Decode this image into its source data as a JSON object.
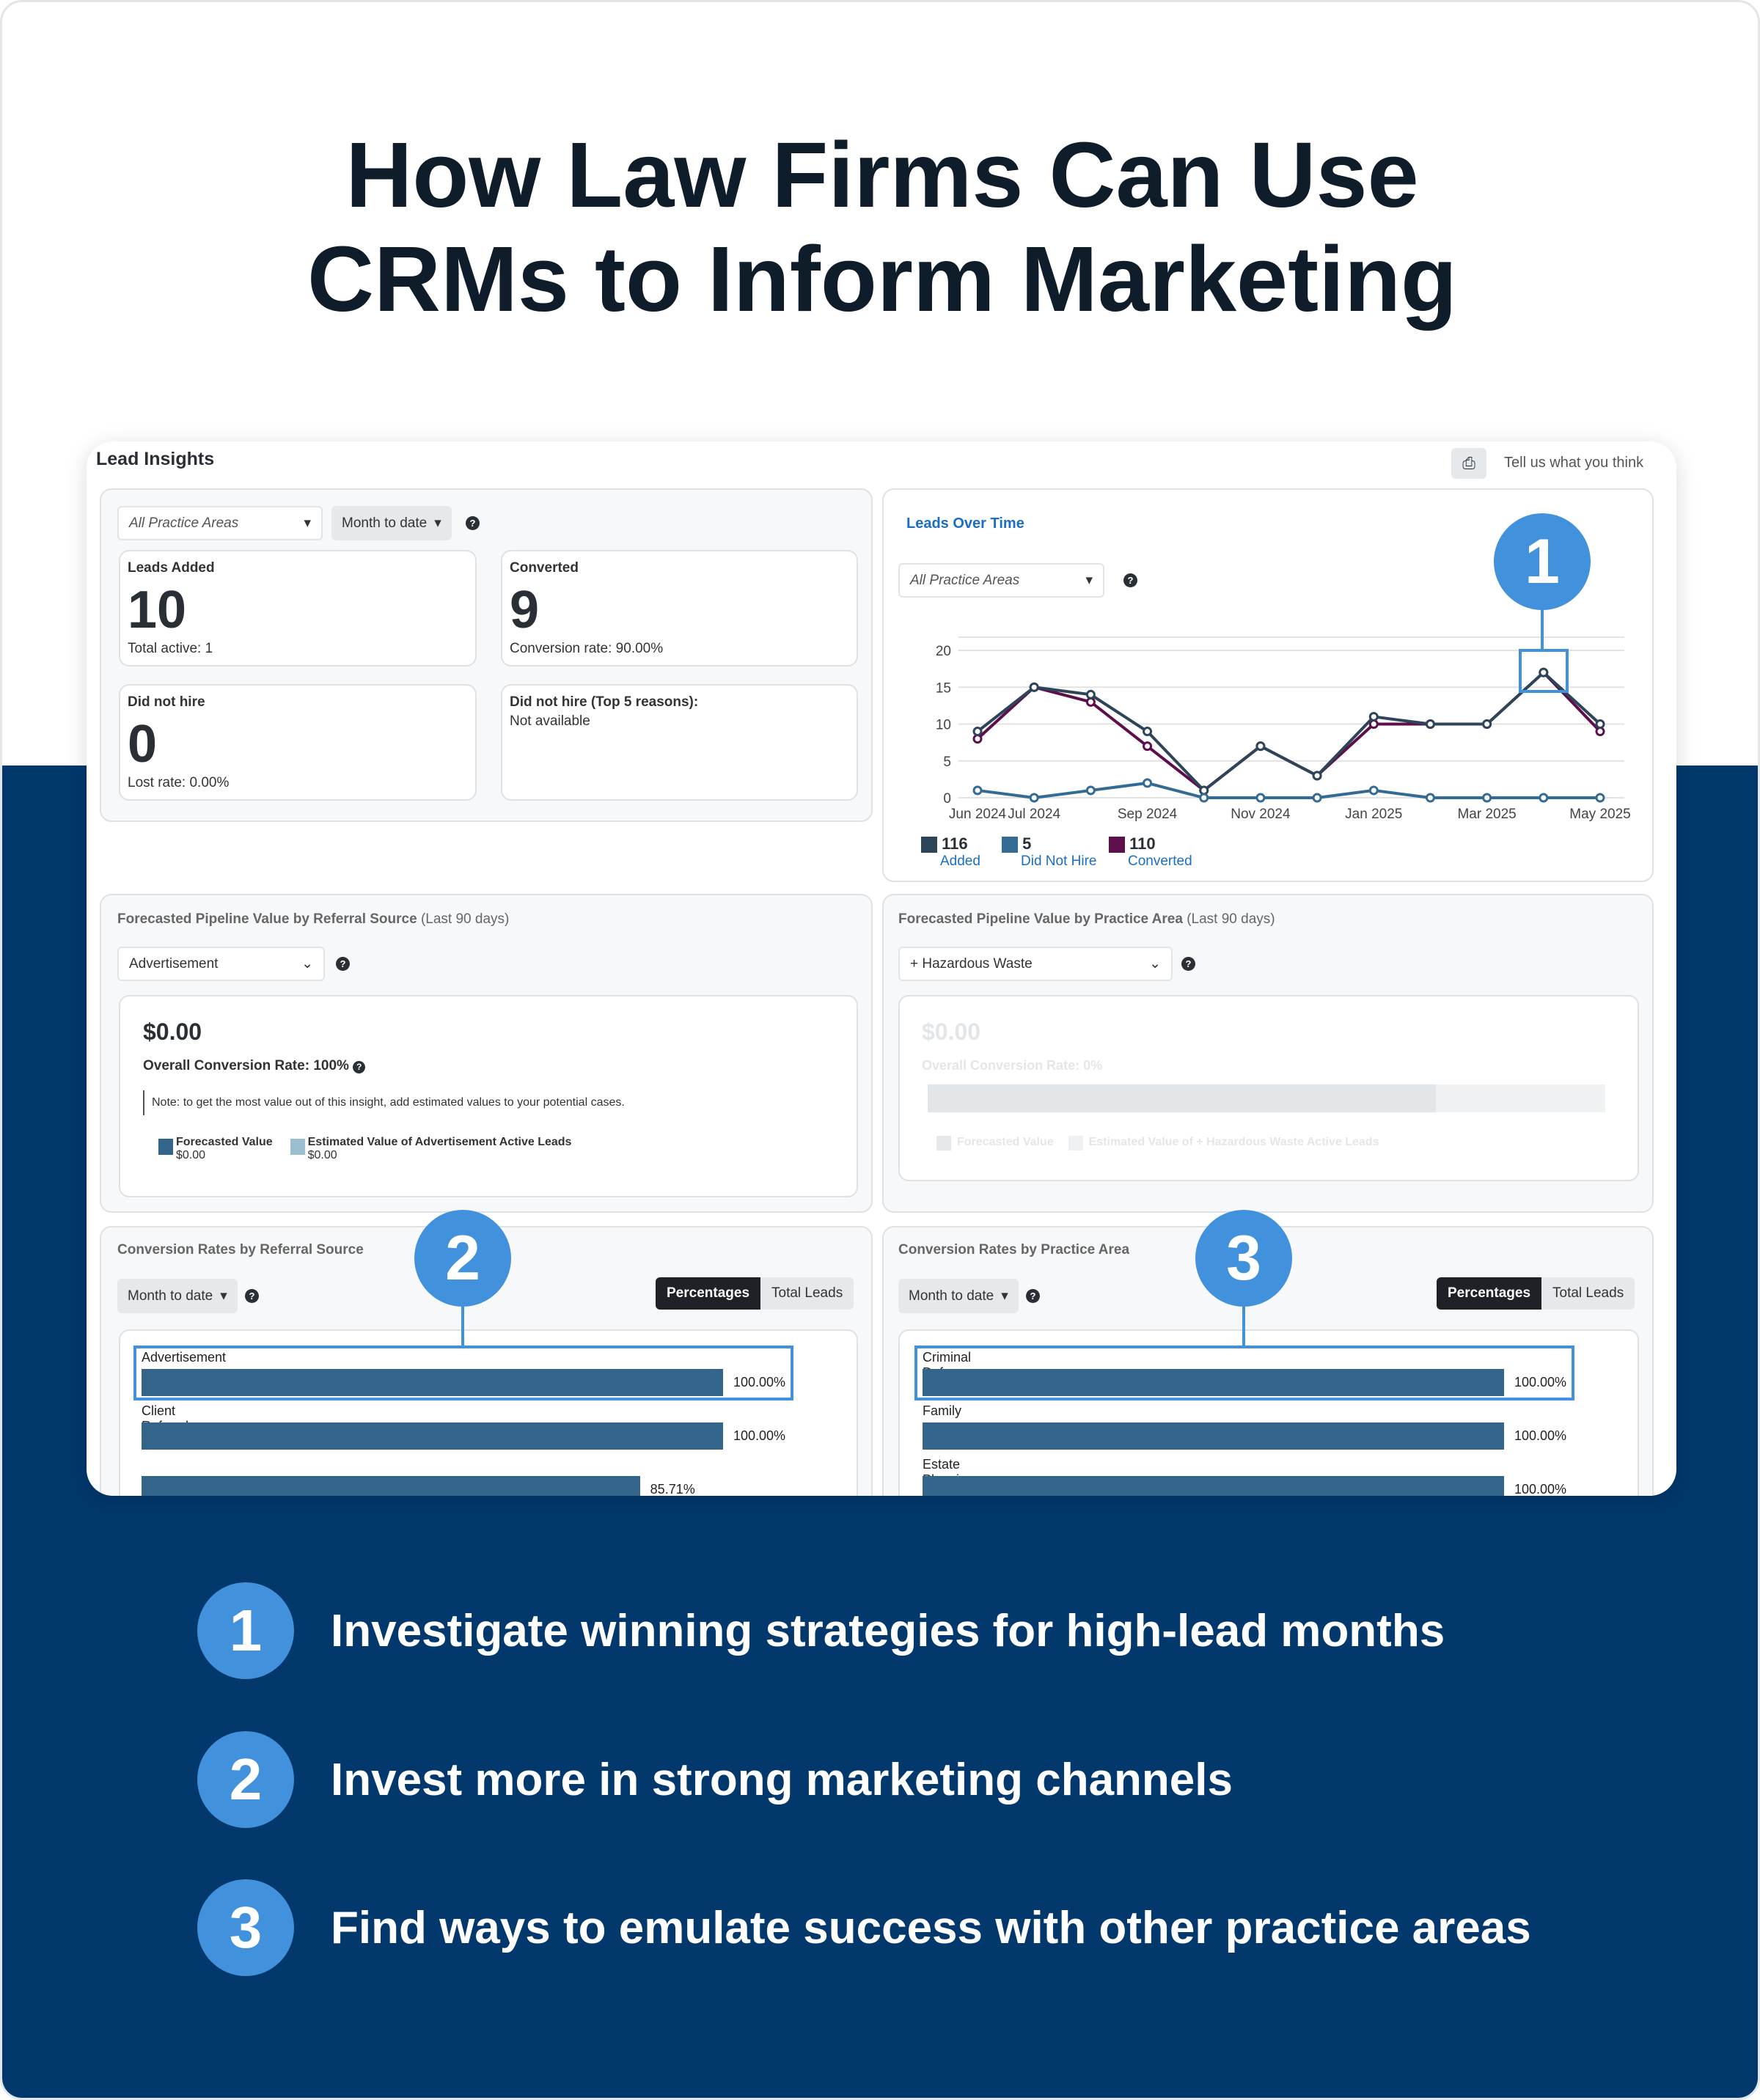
{
  "page": {
    "title_line1": "How Law Firms Can Use",
    "title_line2": "CRMs to Inform Marketing"
  },
  "header": {
    "title": "Lead Insights",
    "print_icon": "printer-icon",
    "feedback": "Tell us what you think"
  },
  "summary": {
    "practice_area_select": "All Practice Areas",
    "period_select": "Month to date",
    "help": "?",
    "leads_added": {
      "title": "Leads Added",
      "value": "10",
      "sub": "Total active: 1"
    },
    "converted": {
      "title": "Converted",
      "value": "9",
      "sub": "Conversion rate: 90.00%"
    },
    "did_not_hire": {
      "title": "Did not hire",
      "value": "0",
      "sub": "Lost rate: 0.00%"
    },
    "reasons": {
      "title": "Did not hire (Top 5 reasons):",
      "value": "Not available"
    }
  },
  "leads_over_time": {
    "title": "Leads Over Time",
    "select": "All Practice Areas"
  },
  "chart_data": {
    "type": "line",
    "title": "Leads Over Time",
    "x": [
      "Jun 2024",
      "Jul 2024",
      "Aug 2024",
      "Sep 2024",
      "Oct 2024",
      "Nov 2024",
      "Dec 2024",
      "Jan 2025",
      "Feb 2025",
      "Mar 2025",
      "Apr 2025",
      "May 2025"
    ],
    "x_tick_labels": [
      "Jun 2024",
      "Jul 2024",
      "Sep 2024",
      "Nov 2024",
      "Jan 2025",
      "Mar 2025",
      "May 2025"
    ],
    "y_ticks": [
      "0",
      "5",
      "10",
      "15",
      "20"
    ],
    "ylim": [
      0,
      22
    ],
    "grid": true,
    "series": [
      {
        "name": "Added",
        "total": "116",
        "color": "#2e4459",
        "values": [
          9,
          15,
          14,
          9,
          1,
          7,
          3,
          11,
          10,
          10,
          17,
          10
        ]
      },
      {
        "name": "Did Not Hire",
        "total": "5",
        "color": "#336b94",
        "values": [
          1,
          0,
          1,
          2,
          0,
          0,
          0,
          1,
          0,
          0,
          0,
          0
        ]
      },
      {
        "name": "Converted",
        "total": "110",
        "color": "#5e0f4b",
        "values": [
          8,
          15,
          13,
          7,
          1,
          7,
          3,
          10,
          10,
          10,
          17,
          9
        ]
      }
    ],
    "legend": "bottom-left"
  },
  "pipeline_referral": {
    "title": "Forecasted Pipeline Value by Referral Source",
    "period": "(Last 90 days)",
    "select": "Advertisement",
    "value": "$0.00",
    "rate_label": "Overall Conversion Rate:",
    "rate": "100%",
    "note": "Note: to get the most value out of this insight, add estimated values to your potential cases.",
    "legend": [
      {
        "label": "Forecasted Value",
        "value": "$0.00",
        "color": "#33658a"
      },
      {
        "label": "Estimated Value of Advertisement Active Leads",
        "value": "$0.00",
        "color": "#9bbfd0"
      }
    ]
  },
  "pipeline_practice": {
    "title": "Forecasted Pipeline Value by Practice Area",
    "period": "(Last 90 days)",
    "select": "+ Hazardous Waste",
    "value": "$0.00",
    "rate_label": "Overall Conversion Rate: 0%",
    "bar_fill": 0.75,
    "legend": [
      {
        "label": "Forecasted Value"
      },
      {
        "label": "Estimated Value of + Hazardous Waste Active Leads"
      }
    ]
  },
  "conv_referral": {
    "title": "Conversion Rates by Referral Source",
    "period": "Month to date",
    "toggle": [
      "Percentages",
      "Total Leads"
    ],
    "rows": [
      {
        "label": "Advertisement",
        "value": "100.00%",
        "pct": 100
      },
      {
        "label": "Client Referral",
        "value": "100.00%",
        "pct": 100
      },
      {
        "label": "",
        "value": "85.71%",
        "pct": 85.71
      }
    ]
  },
  "conv_practice": {
    "title": "Conversion Rates by Practice Area",
    "period": "Month to date",
    "toggle": [
      "Percentages",
      "Total Leads"
    ],
    "rows": [
      {
        "label": "Criminal Defense",
        "value": "100.00%",
        "pct": 100
      },
      {
        "label": "Family",
        "value": "100.00%",
        "pct": 100
      },
      {
        "label": "Estate Planning",
        "value": "100.00%",
        "pct": 100
      }
    ]
  },
  "callouts": [
    "1",
    "2",
    "3"
  ],
  "steps": [
    {
      "num": "1",
      "text": "Investigate winning strategies for high-lead months"
    },
    {
      "num": "2",
      "text": "Invest more in strong marketing channels"
    },
    {
      "num": "3",
      "text": "Find ways to emulate success with other practice areas"
    }
  ],
  "colors": {
    "navy": "#02386c",
    "accent": "#4191dc",
    "bar": "#33658a"
  }
}
